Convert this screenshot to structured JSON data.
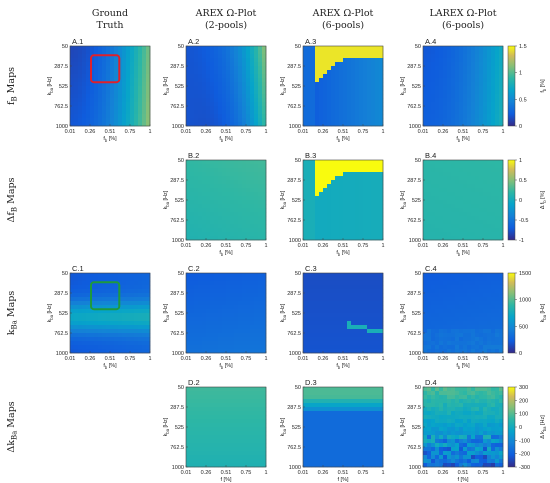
{
  "chart_data": {
    "type": "heatmap",
    "columns": [
      {
        "id": "gt",
        "title_lines": [
          "Ground",
          "Truth"
        ]
      },
      {
        "id": "arex2",
        "title_lines": [
          "AREX Ω-Plot",
          "(2-pools)"
        ]
      },
      {
        "id": "arex6",
        "title_lines": [
          "AREX Ω-Plot",
          "(6-pools)"
        ]
      },
      {
        "id": "larex",
        "title_lines": [
          "LAREX Ω-Plot",
          "(6-pools)"
        ]
      }
    ],
    "row_labels": [
      "f_B Maps",
      "Δf_B Maps",
      "k_Ba Maps",
      "Δk_Ba Maps"
    ],
    "x_ticks": [
      "0.01",
      "0.26",
      "0.51",
      "0.75",
      "1"
    ],
    "y_ticks": [
      "50",
      "287.5",
      "525",
      "762.5",
      "1000"
    ],
    "x_unit_text": "[%]",
    "y_axis_label": "k_ba [Hz]",
    "panels": [
      {
        "id": "A.1",
        "row": 0,
        "col": 0,
        "xvar": "f_b",
        "map": "fb_truth"
      },
      {
        "id": "A.2",
        "row": 0,
        "col": 1,
        "xvar": "f_b",
        "map": "fb_arex2"
      },
      {
        "id": "A.3",
        "row": 0,
        "col": 2,
        "xvar": "f_b",
        "map": "fb_arex6"
      },
      {
        "id": "A.4",
        "row": 0,
        "col": 3,
        "xvar": "f_b",
        "map": "fb_larex"
      },
      {
        "id": "B.2",
        "row": 1,
        "col": 1,
        "xvar": "f_b",
        "map": "dfb_arex2"
      },
      {
        "id": "B.3",
        "row": 1,
        "col": 2,
        "xvar": "f_b",
        "map": "dfb_arex6"
      },
      {
        "id": "B.4",
        "row": 1,
        "col": 3,
        "xvar": "f_b",
        "map": "dfb_larex"
      },
      {
        "id": "C.1",
        "row": 2,
        "col": 0,
        "xvar": "f_b",
        "map": "kba_truth"
      },
      {
        "id": "C.2",
        "row": 2,
        "col": 1,
        "xvar": "f_b",
        "map": "kba_arex2"
      },
      {
        "id": "C.3",
        "row": 2,
        "col": 2,
        "xvar": "f_b",
        "map": "kba_arex6"
      },
      {
        "id": "C.4",
        "row": 2,
        "col": 3,
        "xvar": "f_b",
        "map": "kba_larex"
      },
      {
        "id": "D.2",
        "row": 3,
        "col": 1,
        "xvar": "f",
        "map": "dkba_arex2"
      },
      {
        "id": "D.3",
        "row": 3,
        "col": 2,
        "xvar": "f",
        "map": "dkba_arex6"
      },
      {
        "id": "D.4",
        "row": 3,
        "col": 3,
        "xvar": "f",
        "map": "dkba_larex"
      }
    ],
    "highlight_boxes": [
      {
        "panel": "A.1",
        "color": "#e0202a",
        "x_range": [
          0.27,
          0.62
        ],
        "y_range": [
          160,
          480
        ]
      },
      {
        "panel": "C.1",
        "color": "#1e9a3c",
        "x_range": [
          0.27,
          0.62
        ],
        "y_range": [
          160,
          480
        ]
      }
    ],
    "colorbars": [
      {
        "row": 0,
        "label": "f_b [%]",
        "min": 0,
        "max": 1.5,
        "ticks": [
          "1.5",
          "1",
          "0.5",
          "0"
        ]
      },
      {
        "row": 1,
        "label": "Δ f_b [%]",
        "min": -1,
        "max": 1,
        "ticks": [
          "1",
          "0.5",
          "0",
          "-0.5",
          "-1"
        ]
      },
      {
        "row": 2,
        "label": "k_ba [Hz]",
        "min": 0,
        "max": 1500,
        "ticks": [
          "1500",
          "1000",
          "500",
          "0"
        ]
      },
      {
        "row": 3,
        "label": "Δ k_ba [Hz]",
        "min": -300,
        "max": 300,
        "ticks": [
          "300",
          "200",
          "100",
          "0",
          "-100",
          "-200",
          "-300"
        ]
      }
    ],
    "colormap": "parula"
  }
}
